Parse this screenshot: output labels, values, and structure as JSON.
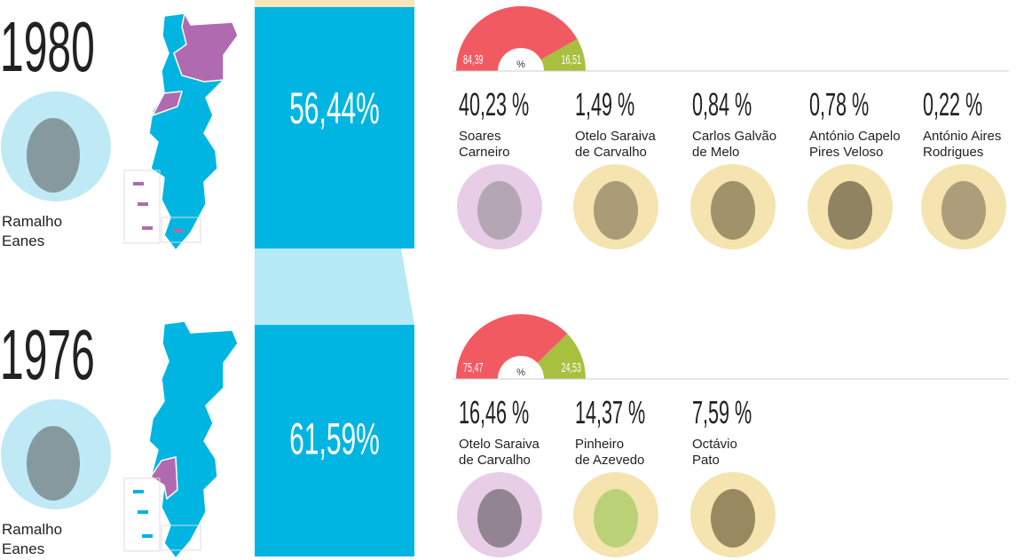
{
  "elections": [
    {
      "year": "1980",
      "winner": [
        "Ramalho",
        "Eanes"
      ],
      "winner_result": "56,44%",
      "gauge": {
        "unit": "%",
        "segments": [
          {
            "value": 84.39,
            "label": "84,39"
          },
          {
            "value": 16.51,
            "label": "16,51"
          }
        ]
      },
      "candidates": [
        {
          "result": "40,23 %",
          "name": [
            "Soares",
            "Carneiro"
          ]
        },
        {
          "result": "1,49 %",
          "name": [
            "Otelo Saraiva",
            "de Carvalho"
          ]
        },
        {
          "result": "0,84 %",
          "name": [
            "Carlos Galvão",
            "de Melo"
          ]
        },
        {
          "result": "0,78 %",
          "name": [
            "António Capelo",
            "Pires Veloso"
          ]
        },
        {
          "result": "0,22 %",
          "name": [
            "António  Aires",
            "Rodrigues"
          ]
        }
      ]
    },
    {
      "year": "1976",
      "winner": [
        "Ramalho",
        "Eanes"
      ],
      "winner_result": "61,59%",
      "gauge": {
        "unit": "%",
        "segments": [
          {
            "value": 75.47,
            "label": "75,47"
          },
          {
            "value": 24.53,
            "label": "24,53"
          }
        ]
      },
      "candidates": [
        {
          "result": "16,46 %",
          "name": [
            "Otelo Saraiva",
            "de Carvalho"
          ]
        },
        {
          "result": "14,37 %",
          "name": [
            "Pinheiro",
            "de Azevedo"
          ]
        },
        {
          "result": "7,59 %",
          "name": [
            "Octávio",
            "Pato"
          ]
        }
      ]
    }
  ]
}
